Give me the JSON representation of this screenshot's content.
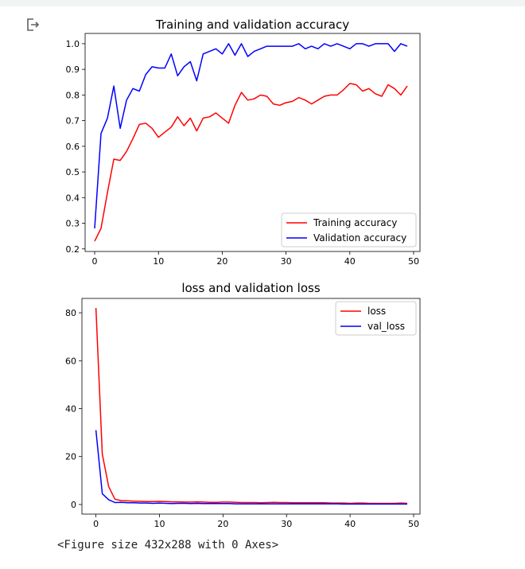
{
  "output": {
    "icon": "output-redirect-icon",
    "caption": "<Figure size 432x288 with 0 Axes>"
  },
  "chart_data": [
    {
      "type": "line",
      "title": "Training and validation accuracy",
      "xlabel": "",
      "ylabel": "",
      "xlim": [
        -1.5,
        51
      ],
      "ylim": [
        0.19,
        1.04
      ],
      "xticks": [
        0,
        10,
        20,
        30,
        40,
        50
      ],
      "yticks": [
        0.2,
        0.3,
        0.4,
        0.5,
        0.6,
        0.7,
        0.8,
        0.9,
        1.0
      ],
      "ytick_format": 1,
      "grid": false,
      "legend_position": "lower-right",
      "series": [
        {
          "name": "Training accuracy",
          "color": "#ff0000",
          "x": [
            0,
            1,
            2,
            3,
            4,
            5,
            6,
            7,
            8,
            9,
            10,
            11,
            12,
            13,
            14,
            15,
            16,
            17,
            18,
            19,
            20,
            21,
            22,
            23,
            24,
            25,
            26,
            27,
            28,
            29,
            30,
            31,
            32,
            33,
            34,
            35,
            36,
            37,
            38,
            39,
            40,
            41,
            42,
            43,
            44,
            45,
            46,
            47,
            48,
            49
          ],
          "values": [
            0.23,
            0.28,
            0.42,
            0.55,
            0.545,
            0.58,
            0.63,
            0.685,
            0.69,
            0.67,
            0.635,
            0.655,
            0.675,
            0.715,
            0.68,
            0.71,
            0.66,
            0.71,
            0.715,
            0.73,
            0.71,
            0.69,
            0.76,
            0.81,
            0.78,
            0.785,
            0.8,
            0.795,
            0.765,
            0.76,
            0.77,
            0.775,
            0.79,
            0.78,
            0.765,
            0.78,
            0.795,
            0.8,
            0.8,
            0.82,
            0.845,
            0.84,
            0.815,
            0.825,
            0.805,
            0.795,
            0.84,
            0.825,
            0.8,
            0.835
          ]
        },
        {
          "name": "Validation accuracy",
          "color": "#0000ff",
          "x": [
            0,
            1,
            2,
            3,
            4,
            5,
            6,
            7,
            8,
            9,
            10,
            11,
            12,
            13,
            14,
            15,
            16,
            17,
            18,
            19,
            20,
            21,
            22,
            23,
            24,
            25,
            26,
            27,
            28,
            29,
            30,
            31,
            32,
            33,
            34,
            35,
            36,
            37,
            38,
            39,
            40,
            41,
            42,
            43,
            44,
            45,
            46,
            47,
            48,
            49
          ],
          "values": [
            0.28,
            0.65,
            0.71,
            0.835,
            0.67,
            0.78,
            0.825,
            0.815,
            0.88,
            0.91,
            0.905,
            0.905,
            0.96,
            0.875,
            0.91,
            0.93,
            0.855,
            0.96,
            0.97,
            0.98,
            0.96,
            1.0,
            0.955,
            1.0,
            0.95,
            0.97,
            0.98,
            0.99,
            0.99,
            0.99,
            0.99,
            0.99,
            1.0,
            0.98,
            0.99,
            0.98,
            1.0,
            0.99,
            1.0,
            0.99,
            0.98,
            1.0,
            1.0,
            0.99,
            1.0,
            1.0,
            1.0,
            0.97,
            1.0,
            0.99
          ]
        }
      ]
    },
    {
      "type": "line",
      "title": "loss and validation loss",
      "xlabel": "",
      "ylabel": "",
      "xlim": [
        -2.2,
        51
      ],
      "ylim": [
        -4,
        86
      ],
      "xticks": [
        0,
        10,
        20,
        30,
        40,
        50
      ],
      "yticks": [
        0,
        20,
        40,
        60,
        80
      ],
      "ytick_format": 0,
      "grid": false,
      "legend_position": "upper-right",
      "series": [
        {
          "name": "loss",
          "color": "#ff0000",
          "x": [
            0,
            1,
            2,
            3,
            4,
            5,
            6,
            7,
            8,
            9,
            10,
            11,
            12,
            13,
            14,
            15,
            16,
            17,
            18,
            19,
            20,
            21,
            22,
            23,
            24,
            25,
            26,
            27,
            28,
            29,
            30,
            31,
            32,
            33,
            34,
            35,
            36,
            37,
            38,
            39,
            40,
            41,
            42,
            43,
            44,
            45,
            46,
            47,
            48,
            49
          ],
          "values": [
            82,
            21,
            7.5,
            2.2,
            1.6,
            1.5,
            1.4,
            1.3,
            1.2,
            1.2,
            1.3,
            1.2,
            1.1,
            1.1,
            1.0,
            1.0,
            1.1,
            1.0,
            0.9,
            0.9,
            1.0,
            1.0,
            0.9,
            0.8,
            0.8,
            0.8,
            0.7,
            0.8,
            0.9,
            0.8,
            0.8,
            0.7,
            0.7,
            0.7,
            0.7,
            0.7,
            0.7,
            0.6,
            0.6,
            0.6,
            0.5,
            0.6,
            0.6,
            0.5,
            0.5,
            0.5,
            0.5,
            0.5,
            0.6,
            0.5
          ]
        },
        {
          "name": "val_loss",
          "color": "#0000ff",
          "x": [
            0,
            1,
            2,
            3,
            4,
            5,
            6,
            7,
            8,
            9,
            10,
            11,
            12,
            13,
            14,
            15,
            16,
            17,
            18,
            19,
            20,
            21,
            22,
            23,
            24,
            25,
            26,
            27,
            28,
            29,
            30,
            31,
            32,
            33,
            34,
            35,
            36,
            37,
            38,
            39,
            40,
            41,
            42,
            43,
            44,
            45,
            46,
            47,
            48,
            49
          ],
          "values": [
            31,
            4.5,
            2,
            0.8,
            0.9,
            0.7,
            0.7,
            0.6,
            0.6,
            0.5,
            0.6,
            0.5,
            0.4,
            0.5,
            0.5,
            0.4,
            0.5,
            0.4,
            0.4,
            0.4,
            0.4,
            0.4,
            0.3,
            0.3,
            0.3,
            0.3,
            0.3,
            0.3,
            0.3,
            0.3,
            0.3,
            0.3,
            0.3,
            0.3,
            0.3,
            0.3,
            0.3,
            0.3,
            0.3,
            0.2,
            0.2,
            0.2,
            0.2,
            0.2,
            0.2,
            0.2,
            0.2,
            0.2,
            0.2,
            0.2
          ]
        }
      ]
    }
  ]
}
